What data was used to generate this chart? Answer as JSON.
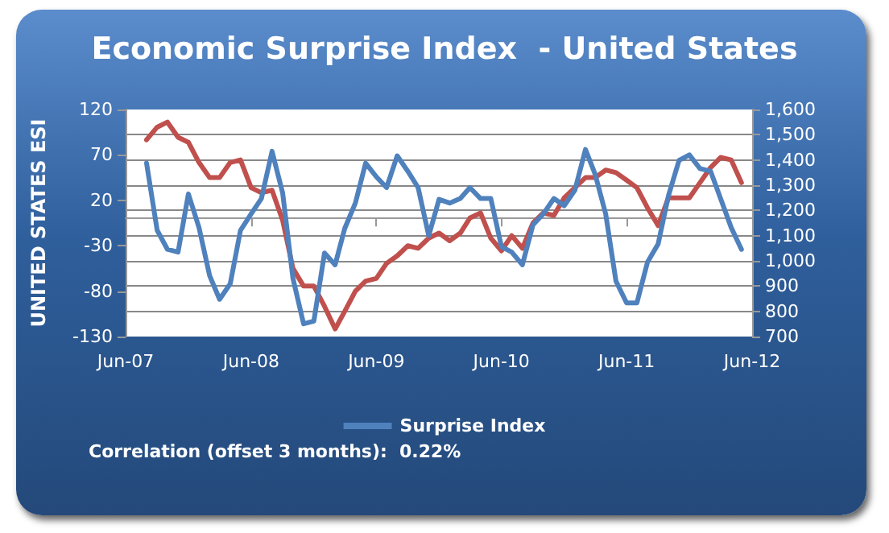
{
  "chart_data": {
    "type": "line",
    "title": "Economic Surprise Index  - United States",
    "ylabel": "UNITED STATES ESI",
    "x": [
      "2007-08",
      "2007-09",
      "2007-10",
      "2007-11",
      "2007-12",
      "2008-01",
      "2008-02",
      "2008-03",
      "2008-04",
      "2008-05",
      "2008-06",
      "2008-07",
      "2008-08",
      "2008-09",
      "2008-10",
      "2008-11",
      "2008-12",
      "2009-01",
      "2009-02",
      "2009-03",
      "2009-04",
      "2009-05",
      "2009-06",
      "2009-07",
      "2009-08",
      "2009-09",
      "2009-10",
      "2009-11",
      "2009-12",
      "2010-01",
      "2010-02",
      "2010-03",
      "2010-04",
      "2010-05",
      "2010-06",
      "2010-07",
      "2010-08",
      "2010-09",
      "2010-10",
      "2010-11",
      "2010-12",
      "2011-01",
      "2011-02",
      "2011-03",
      "2011-04",
      "2011-05",
      "2011-06",
      "2011-07",
      "2011-08",
      "2011-09",
      "2011-10",
      "2011-11",
      "2011-12",
      "2012-01",
      "2012-02",
      "2012-03",
      "2012-04",
      "2012-05"
    ],
    "series": [
      {
        "color": "#c0504d",
        "axis": "y2",
        "values": [
          1480,
          1530,
          1550,
          1490,
          1470,
          1390,
          1330,
          1330,
          1390,
          1400,
          1290,
          1270,
          1280,
          1160,
          970,
          900,
          900,
          820,
          730,
          800,
          880,
          920,
          930,
          990,
          1020,
          1060,
          1050,
          1090,
          1110,
          1080,
          1110,
          1170,
          1190,
          1090,
          1040,
          1100,
          1050,
          1150,
          1190,
          1180,
          1250,
          1290,
          1330,
          1330,
          1360,
          1350,
          1320,
          1290,
          1210,
          1140,
          1250,
          1250,
          1250,
          1310,
          1370,
          1410,
          1400,
          1310
        ]
      },
      {
        "name": "Surprise Index",
        "color": "#4f81bd",
        "values": [
          61,
          -13,
          -34,
          -37,
          27,
          -10,
          -63,
          -89,
          -72,
          -13,
          5,
          22,
          74,
          28,
          -66,
          -116,
          -113,
          -38,
          -51,
          -11,
          17,
          61,
          46,
          34,
          69,
          52,
          34,
          -19,
          21,
          17,
          22,
          34,
          22,
          22,
          -31,
          -37,
          -51,
          -7,
          5,
          22,
          14,
          31,
          76,
          49,
          5,
          -69,
          -93,
          -93,
          -48,
          -28,
          25,
          64,
          70,
          55,
          52,
          22,
          -10,
          -34
        ]
      }
    ],
    "xlim": [
      "2007-06",
      "2012-06"
    ],
    "xticks": [
      {
        "value": "2007-06",
        "label": "Jun-07"
      },
      {
        "value": "2008-06",
        "label": "Jun-08"
      },
      {
        "value": "2009-06",
        "label": "Jun-09"
      },
      {
        "value": "2010-06",
        "label": "Jun-10"
      },
      {
        "value": "2011-06",
        "label": "Jun-11"
      },
      {
        "value": "2012-06",
        "label": "Jun-12"
      }
    ],
    "ylim": [
      -130,
      120
    ],
    "yticks": [
      -130,
      -80,
      -30,
      20,
      70,
      120
    ],
    "y2lim": [
      700,
      1600
    ],
    "y2ticks": [
      {
        "value": 700,
        "label": "700"
      },
      {
        "value": 800,
        "label": "800"
      },
      {
        "value": 900,
        "label": "900"
      },
      {
        "value": 1000,
        "label": "1,000"
      },
      {
        "value": 1100,
        "label": "1,100"
      },
      {
        "value": 1200,
        "label": "1,200"
      },
      {
        "value": 1300,
        "label": "1,300"
      },
      {
        "value": 1400,
        "label": "1,400"
      },
      {
        "value": 1500,
        "label": "1,500"
      },
      {
        "value": 1600,
        "label": "1,600"
      }
    ],
    "grid": "y",
    "legend": "bottom",
    "marker": "none",
    "line_style": "solid",
    "annotations": [
      "Correlation (offset 3 months):  0.22%"
    ]
  }
}
